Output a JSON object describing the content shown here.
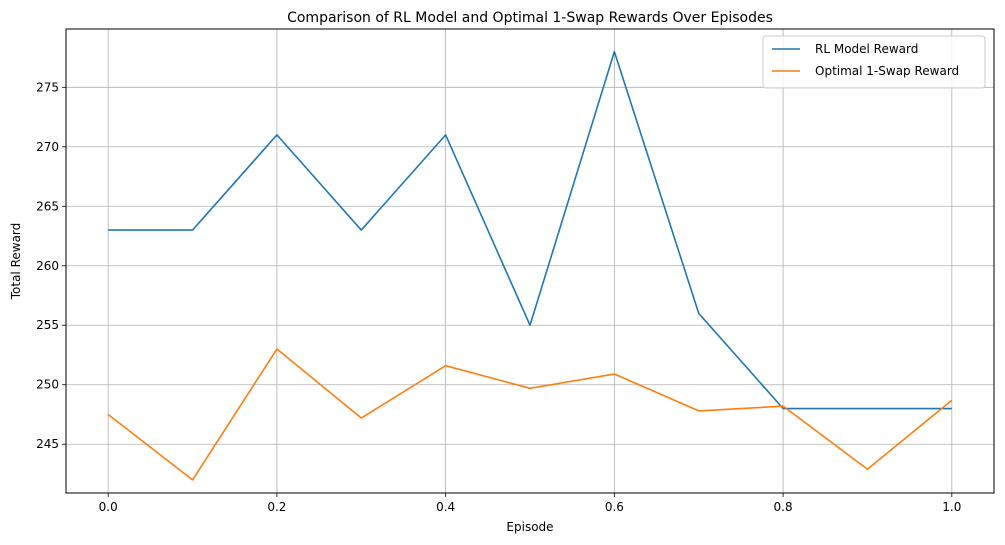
{
  "chart_data": {
    "type": "line",
    "title": "Comparison of RL Model and Optimal 1-Swap Rewards Over Episodes",
    "xlabel": "Episode",
    "ylabel": "Total Reward",
    "xlim": [
      -0.05,
      1.05
    ],
    "ylim": [
      240.9,
      279.9
    ],
    "xticks": [
      0.0,
      0.2,
      0.4,
      0.6,
      0.8,
      1.0
    ],
    "xtick_labels": [
      "0.0",
      "0.2",
      "0.4",
      "0.6",
      "0.8",
      "1.0"
    ],
    "yticks": [
      245,
      250,
      255,
      260,
      265,
      270,
      275
    ],
    "ytick_labels": [
      "245",
      "250",
      "255",
      "260",
      "265",
      "270",
      "275"
    ],
    "grid": true,
    "legend_position": "top-right",
    "x": [
      0.0,
      0.1,
      0.2,
      0.3,
      0.4,
      0.5,
      0.6,
      0.7,
      0.8,
      0.9,
      1.0
    ],
    "series": [
      {
        "name": "RL Model Reward",
        "color": "#1f77b4",
        "values": [
          263,
          263,
          271,
          263,
          271,
          255,
          278,
          256,
          248,
          248,
          248
        ]
      },
      {
        "name": "Optimal 1-Swap Reward",
        "color": "#ff7f0e",
        "values": [
          247.5,
          242.0,
          253.0,
          247.2,
          251.6,
          249.7,
          250.9,
          247.8,
          248.2,
          242.9,
          248.7
        ]
      }
    ]
  }
}
